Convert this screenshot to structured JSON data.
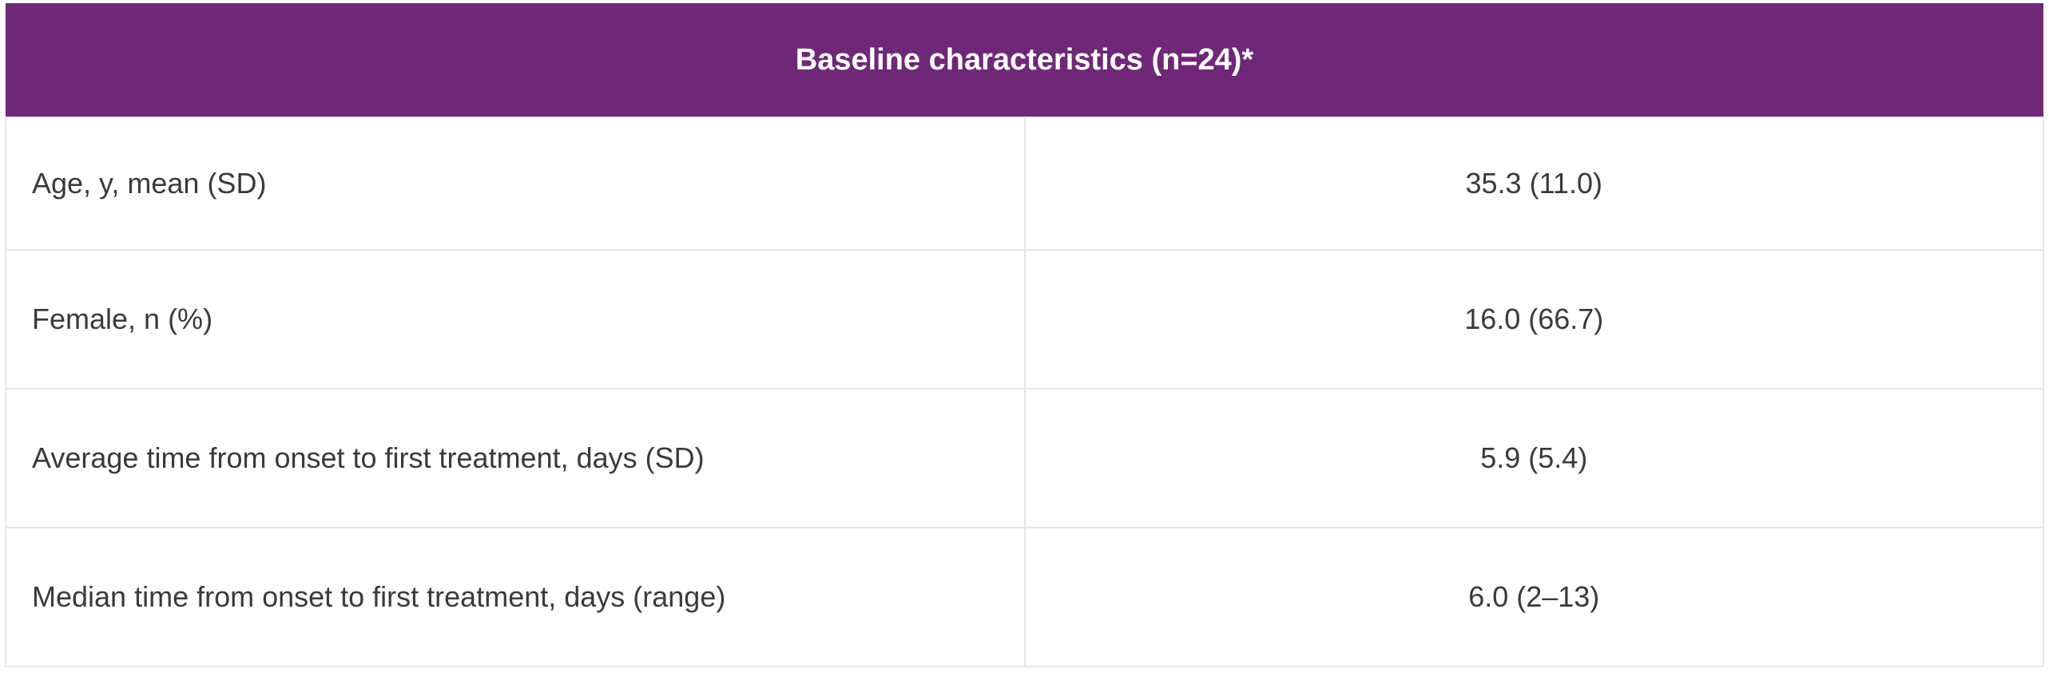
{
  "table": {
    "title": "Baseline characteristics (n=24)*",
    "rows": [
      [
        "Age, y, mean (SD)",
        "35.3 (11.0)"
      ],
      [
        "Female, n (%)",
        "16.0 (66.7)"
      ],
      [
        "Average time from onset to first treatment, days (SD)",
        "5.9 (5.4)"
      ],
      [
        "Median time from onset to first treatment, days (range)",
        "6.0 (2–13)"
      ]
    ]
  }
}
